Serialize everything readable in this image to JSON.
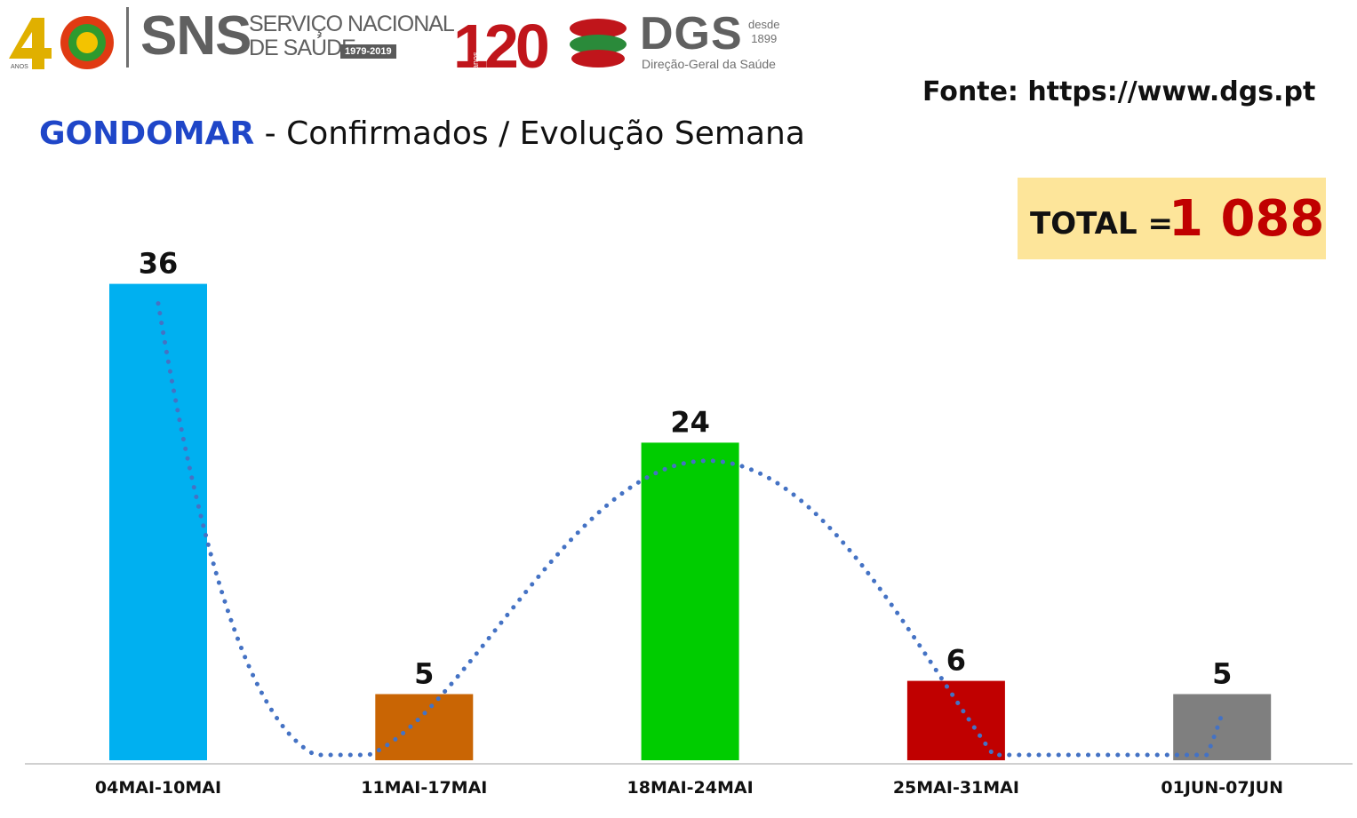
{
  "header": {
    "sns_anniversary": "40",
    "sns_anniversary_sub": "ANOS",
    "sns_acronym": "SNS",
    "sns_name_line1": "SERVIÇO NACIONAL",
    "sns_name_line2": "DE SAÚDE",
    "sns_years": "1979-2019",
    "dgs_anniversary": "120",
    "dgs_anniversary_sub": "anos",
    "dgs_acronym": "DGS",
    "dgs_since_line1": "desde",
    "dgs_since_line2": "1899",
    "dgs_name": "Direção-Geral da Saúde"
  },
  "source": "Fonte: https://www.dgs.pt",
  "title": {
    "place": "GONDOMAR",
    "rest": " - Confirmados / Evolução Semana"
  },
  "total": {
    "label": "TOTAL = ",
    "value": "1 088"
  },
  "colors": {
    "title_place": "#1f46c8",
    "total_value": "#c00000",
    "total_box": "#fde59a",
    "trendline": "#4472c4"
  },
  "chart_data": {
    "type": "bar",
    "categories": [
      "04MAI-10MAI",
      "11MAI-17MAI",
      "18MAI-24MAI",
      "25MAI-31MAI",
      "01JUN-07JUN"
    ],
    "values": [
      36,
      5,
      24,
      6,
      5
    ],
    "bar_colors": [
      "#00b0f0",
      "#c96504",
      "#00cc00",
      "#c00000",
      "#7f7f7f"
    ],
    "data_labels": [
      "36",
      "5",
      "24",
      "6",
      "5"
    ],
    "ylim": [
      0,
      40
    ],
    "trendline": "polynomial, dotted",
    "grid": false,
    "legend": "none"
  }
}
